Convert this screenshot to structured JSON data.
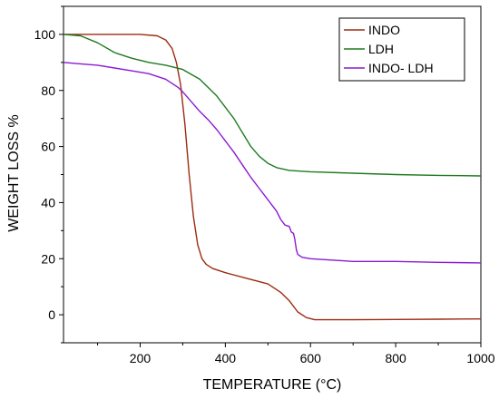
{
  "chart_data": {
    "type": "line",
    "title": "",
    "xlabel": "TEMPERATURE (°C)",
    "ylabel": "WEIGHT LOSS %",
    "xlim": [
      20,
      1000
    ],
    "ylim": [
      -10,
      110
    ],
    "x_ticks": [
      200,
      400,
      600,
      800,
      1000
    ],
    "x_minor_ticks": [
      100,
      300,
      500,
      700,
      900
    ],
    "y_ticks": [
      0,
      20,
      40,
      60,
      80,
      100
    ],
    "y_minor_ticks": [
      -10,
      10,
      30,
      50,
      70,
      90,
      110
    ],
    "grid": false,
    "legend_position": "top-right",
    "series": [
      {
        "name": "INDO",
        "color": "#9b2b10",
        "points": [
          [
            20,
            100
          ],
          [
            100,
            100
          ],
          [
            200,
            100
          ],
          [
            240,
            99.5
          ],
          [
            260,
            98
          ],
          [
            275,
            95
          ],
          [
            285,
            90
          ],
          [
            295,
            82
          ],
          [
            305,
            68
          ],
          [
            315,
            50
          ],
          [
            325,
            35
          ],
          [
            335,
            25
          ],
          [
            345,
            20
          ],
          [
            355,
            18
          ],
          [
            370,
            16.5
          ],
          [
            400,
            15
          ],
          [
            450,
            13
          ],
          [
            500,
            11
          ],
          [
            530,
            8
          ],
          [
            550,
            5
          ],
          [
            570,
            1
          ],
          [
            590,
            -1
          ],
          [
            610,
            -1.8
          ],
          [
            650,
            -1.8
          ],
          [
            700,
            -1.8
          ],
          [
            800,
            -1.7
          ],
          [
            900,
            -1.6
          ],
          [
            1000,
            -1.5
          ]
        ]
      },
      {
        "name": "LDH",
        "color": "#1e7a1e",
        "points": [
          [
            20,
            100
          ],
          [
            60,
            99.5
          ],
          [
            100,
            97
          ],
          [
            140,
            93.5
          ],
          [
            180,
            91.5
          ],
          [
            220,
            90
          ],
          [
            260,
            89
          ],
          [
            300,
            87.5
          ],
          [
            340,
            84
          ],
          [
            380,
            78
          ],
          [
            420,
            70
          ],
          [
            440,
            65
          ],
          [
            460,
            60
          ],
          [
            480,
            56.5
          ],
          [
            500,
            54
          ],
          [
            520,
            52.5
          ],
          [
            550,
            51.5
          ],
          [
            600,
            51
          ],
          [
            700,
            50.5
          ],
          [
            800,
            50
          ],
          [
            900,
            49.7
          ],
          [
            1000,
            49.5
          ]
        ]
      },
      {
        "name": "INDO- LDH",
        "color": "#8a1ad4",
        "points": [
          [
            20,
            90
          ],
          [
            60,
            89.5
          ],
          [
            100,
            89
          ],
          [
            140,
            88
          ],
          [
            180,
            87
          ],
          [
            220,
            86
          ],
          [
            260,
            84
          ],
          [
            290,
            81
          ],
          [
            300,
            79.5
          ],
          [
            320,
            76
          ],
          [
            340,
            72.5
          ],
          [
            360,
            69.5
          ],
          [
            380,
            66
          ],
          [
            400,
            62
          ],
          [
            420,
            58
          ],
          [
            440,
            53.5
          ],
          [
            460,
            49
          ],
          [
            480,
            45
          ],
          [
            500,
            41
          ],
          [
            520,
            37
          ],
          [
            530,
            34
          ],
          [
            540,
            32
          ],
          [
            550,
            31.5
          ],
          [
            555,
            29.5
          ],
          [
            560,
            29
          ],
          [
            563,
            27
          ],
          [
            565,
            25
          ],
          [
            567,
            23
          ],
          [
            570,
            21.5
          ],
          [
            580,
            20.5
          ],
          [
            600,
            20
          ],
          [
            650,
            19.5
          ],
          [
            700,
            19
          ],
          [
            800,
            19
          ],
          [
            900,
            18.7
          ],
          [
            1000,
            18.5
          ]
        ]
      }
    ]
  },
  "legend": {
    "items": [
      {
        "label": "INDO",
        "color": "#9b2b10"
      },
      {
        "label": "LDH",
        "color": "#1e7a1e"
      },
      {
        "label": "INDO- LDH",
        "color": "#8a1ad4"
      }
    ]
  }
}
